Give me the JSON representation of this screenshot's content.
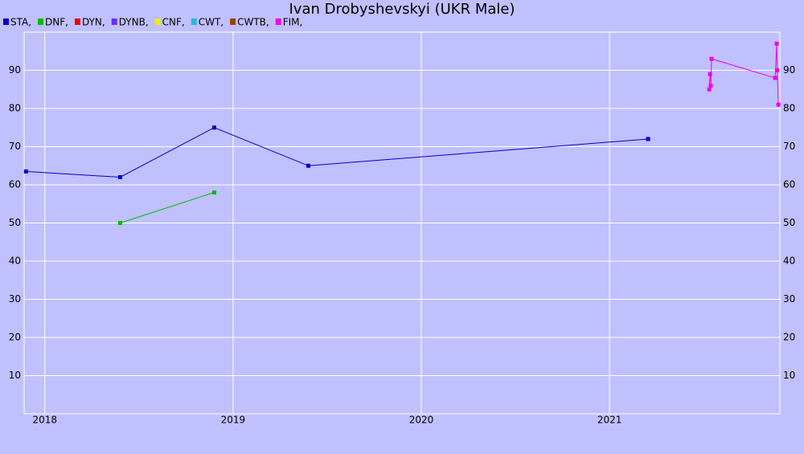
{
  "chart_data": {
    "type": "line",
    "title": "Ivan Drobyshevskyi (UKR Male)",
    "series": [
      {
        "name": "STA,",
        "color": "#0000cc",
        "x": [
          2017.9,
          2018.4,
          2018.9,
          2019.4,
          2021.205
        ],
        "values": [
          63.5,
          62,
          75,
          65,
          72
        ]
      },
      {
        "name": "DNF,",
        "color": "#00bb00",
        "x": [
          2018.4,
          2018.9
        ],
        "values": [
          50,
          58
        ]
      },
      {
        "name": "DYN,",
        "color": "#ee0000",
        "x": [],
        "values": []
      },
      {
        "name": "DYNB,",
        "color": "#6633ee",
        "x": [],
        "values": []
      },
      {
        "name": "CNF,",
        "color": "#eeee00",
        "x": [],
        "values": []
      },
      {
        "name": "CWT,",
        "color": "#22bbdd",
        "x": [],
        "values": []
      },
      {
        "name": "CWTB,",
        "color": "#994400",
        "x": [],
        "values": []
      },
      {
        "name": "FIM,",
        "color": "#ee00ee",
        "x": [
          2021.53,
          2021.534,
          2021.538,
          2021.542,
          2021.88,
          2021.888,
          2021.891,
          2021.897
        ],
        "values": [
          85,
          89,
          86,
          93,
          88,
          97,
          90,
          81
        ]
      }
    ],
    "xlim": [
      2017.89,
      2021.905
    ],
    "xticks": [
      2018,
      2019,
      2020,
      2021
    ],
    "ylim": [
      0,
      100
    ],
    "yticks": [
      10,
      20,
      30,
      40,
      50,
      60,
      70,
      80,
      90
    ],
    "grid": true
  }
}
